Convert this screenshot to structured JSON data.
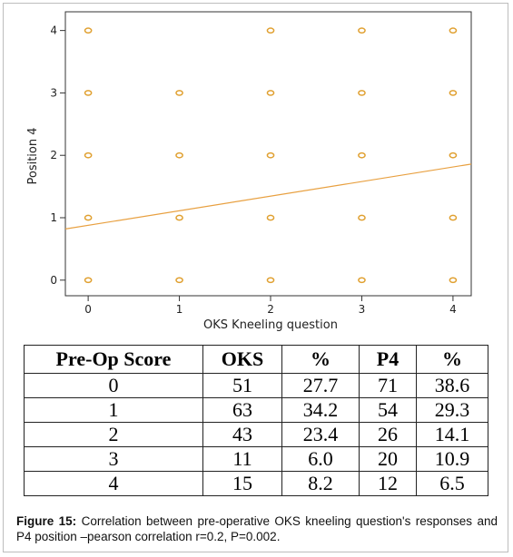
{
  "chart_data": {
    "type": "scatter",
    "xlabel": "OKS Kneeling question",
    "ylabel": "Position 4",
    "xlim": [
      -0.25,
      4.2
    ],
    "ylim": [
      -0.25,
      4.3
    ],
    "xticks": [
      "0",
      "1",
      "2",
      "3",
      "4"
    ],
    "yticks": [
      "0",
      "1",
      "2",
      "3",
      "4"
    ],
    "points": [
      {
        "x": 0,
        "y": 0
      },
      {
        "x": 0,
        "y": 1
      },
      {
        "x": 0,
        "y": 2
      },
      {
        "x": 0,
        "y": 3
      },
      {
        "x": 0,
        "y": 4
      },
      {
        "x": 1,
        "y": 0
      },
      {
        "x": 1,
        "y": 1
      },
      {
        "x": 1,
        "y": 2
      },
      {
        "x": 1,
        "y": 3
      },
      {
        "x": 2,
        "y": 0
      },
      {
        "x": 2,
        "y": 1
      },
      {
        "x": 2,
        "y": 2
      },
      {
        "x": 2,
        "y": 3
      },
      {
        "x": 2,
        "y": 4
      },
      {
        "x": 3,
        "y": 0
      },
      {
        "x": 3,
        "y": 1
      },
      {
        "x": 3,
        "y": 2
      },
      {
        "x": 3,
        "y": 3
      },
      {
        "x": 3,
        "y": 4
      },
      {
        "x": 4,
        "y": 0
      },
      {
        "x": 4,
        "y": 1
      },
      {
        "x": 4,
        "y": 2
      },
      {
        "x": 4,
        "y": 3
      },
      {
        "x": 4,
        "y": 4
      }
    ],
    "fit_line": {
      "x0": -0.25,
      "y0": 0.82,
      "x1": 4.2,
      "y1": 1.86
    },
    "marker_color": "#e0a030",
    "line_color": "#e8a040",
    "grid": false
  },
  "table": {
    "headers": [
      "Pre-Op Score",
      "OKS",
      "%",
      "P4",
      "%"
    ],
    "rows": [
      [
        "0",
        "51",
        "27.7",
        "71",
        "38.6"
      ],
      [
        "1",
        "63",
        "34.2",
        "54",
        "29.3"
      ],
      [
        "2",
        "43",
        "23.4",
        "26",
        "14.1"
      ],
      [
        "3",
        "11",
        "6.0",
        "20",
        "10.9"
      ],
      [
        "4",
        "15",
        "8.2",
        "12",
        "6.5"
      ]
    ]
  },
  "caption": {
    "label": "Figure 15:",
    "text": " Correlation between pre-operative OKS kneeling question's responses and P4 position –pearson correlation r=0.2, P=0.002."
  }
}
